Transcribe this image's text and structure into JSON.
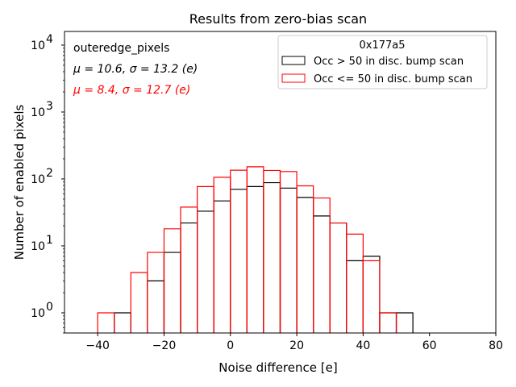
{
  "chart_data": {
    "type": "histogram",
    "title": "Results from zero-bias scan",
    "xlabel": "Noise difference [e]",
    "ylabel": "Number of enabled pixels",
    "xlim": [
      -50,
      80
    ],
    "ylim": [
      0.5,
      16000
    ],
    "yscale": "log",
    "x_ticks": [
      -40,
      -20,
      0,
      20,
      40,
      60,
      80
    ],
    "x_tick_labels": [
      "−40",
      "−20",
      "0",
      "20",
      "40",
      "60",
      "80"
    ],
    "y_tick_labels": [
      {
        "value": 1,
        "base": "10",
        "exp": "0"
      },
      {
        "value": 10,
        "base": "10",
        "exp": "1"
      },
      {
        "value": 100,
        "base": "10",
        "exp": "2"
      },
      {
        "value": 1000,
        "base": "10",
        "exp": "3"
      },
      {
        "value": 10000,
        "base": "10",
        "exp": "4"
      }
    ],
    "bin_edges": [
      -40,
      -35,
      -30,
      -25,
      -20,
      -15,
      -10,
      -5,
      0,
      5,
      10,
      15,
      20,
      25,
      30,
      35,
      40,
      45,
      50,
      55
    ],
    "series": [
      {
        "name": "Occ > 50 in disc. bump scan",
        "color": "#000000",
        "counts": [
          0,
          1,
          0,
          3,
          8,
          22,
          33,
          47,
          70,
          77,
          88,
          73,
          53,
          28,
          22,
          6,
          7,
          1,
          1
        ]
      },
      {
        "name": "Occ <= 50 in disc. bump scan",
        "color": "#ff0000",
        "counts": [
          1,
          0,
          4,
          8,
          18,
          38,
          77,
          106,
          135,
          152,
          134,
          129,
          79,
          52,
          22,
          15,
          6,
          1,
          0
        ]
      }
    ],
    "annotations": {
      "label": "outeredge_pixels",
      "black_stats": "μ = 10.6, σ = 13.2 (e)",
      "red_stats": "μ = 8.4, σ = 12.7 (e)",
      "black_color": "#000000",
      "red_color": "#ff0000"
    },
    "legend": {
      "title": "0x177a5",
      "position": "top-right"
    }
  }
}
